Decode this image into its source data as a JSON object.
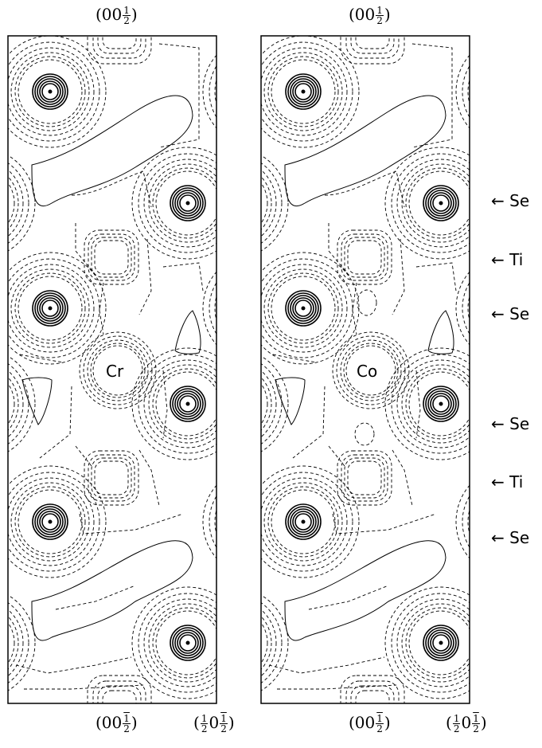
{
  "panels": [
    {
      "atom_label": "Cr",
      "top_label": "(00½)",
      "bottom_labels": [
        "(00½̄)",
        "(½0½̄)"
      ]
    },
    {
      "atom_label": "Co",
      "top_label": "(00½)",
      "bottom_labels": [
        "(00½̄)",
        "(½0½̄)"
      ]
    }
  ],
  "layer_labels": [
    "Se",
    "Ti",
    "Se",
    "Se",
    "Ti",
    "Se"
  ],
  "arrow_symbol": "←"
}
